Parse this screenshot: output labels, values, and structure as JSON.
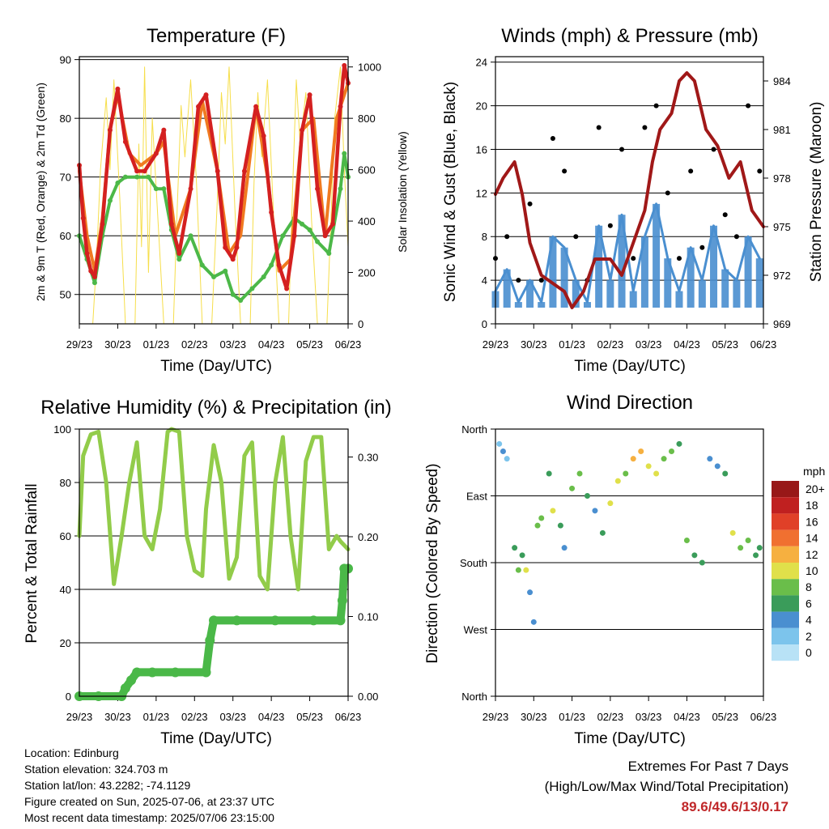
{
  "panels": {
    "temperature": {
      "title": "Temperature (F)",
      "ylabel_left": "2m & 9m T (Red, Orange) & 2m Td (Green)",
      "ylabel_right": "Solar Insolation (Yellow)",
      "xlabel": "Time (Day/UTC)"
    },
    "winds": {
      "title": "Winds (mph) & Pressure (mb)",
      "ylabel_left": "Sonic Wind & Gust (Blue, Black)",
      "ylabel_right": "Station Pressure (Maroon)",
      "xlabel": "Time (Day/UTC)"
    },
    "humidity": {
      "title": "Relative Humidity (%) & Precipitation (in)",
      "ylabel_left": "Percent & Total Rainfall",
      "xlabel": "Time (Day/UTC)"
    },
    "direction": {
      "title": "Wind Direction",
      "ylabel_left": "Direction (Colored By Speed)",
      "xlabel": "Time (Day/UTC)",
      "legend_title": "mph"
    }
  },
  "footer": {
    "location": "Location: Edinburg",
    "elevation": "Station elevation: 324.703 m",
    "latlon": "Station lat/lon: 43.2282; -74.1129",
    "created": "Figure created on Sun, 2025-07-06, at 23:37 UTC",
    "recent": "Most recent data timestamp: 2025/07/06 23:15:00",
    "extremes_heading": "Extremes For Past 7 Days",
    "extremes_subheading": "(High/Low/Max Wind/Total Precipitation)",
    "extremes_values": "89.6/49.6/13/0.17"
  },
  "colors": {
    "temp_2m": "#d42020",
    "temp_9m": "#f07a20",
    "dewpoint": "#4cb848",
    "solar": "#f6de4a",
    "wind": "#4a8fd0",
    "gust": "#000000",
    "pressure": "#a01818",
    "rh": "#92cc4a",
    "precip": "#4ab848"
  },
  "chart_data": [
    {
      "type": "line",
      "x_ticks": [
        "29/23",
        "30/23",
        "01/23",
        "02/23",
        "03/23",
        "04/23",
        "05/23",
        "06/23"
      ],
      "ylim": [
        45,
        90.5
      ],
      "y_ticks": [
        50,
        60,
        70,
        80,
        90
      ],
      "y2lim": [
        0,
        1040
      ],
      "y2_ticks": [
        0,
        200,
        400,
        600,
        800,
        1000
      ],
      "series": [
        {
          "key": "temp_2m",
          "x": [
            0,
            0.1,
            0.2,
            0.3,
            0.4,
            0.6,
            0.8,
            1.0,
            1.2,
            1.5,
            1.7,
            2.0,
            2.2,
            2.4,
            2.6,
            2.9,
            3.1,
            3.3,
            3.6,
            3.8,
            4.0,
            4.1,
            4.3,
            4.6,
            4.8,
            5.0,
            5.2,
            5.4,
            5.6,
            5.8,
            6.0,
            6.2,
            6.4,
            6.6,
            6.8,
            6.9,
            7.0
          ],
          "y": [
            72,
            63,
            57,
            54,
            53,
            62,
            78,
            85,
            76,
            71,
            71,
            74,
            78,
            62,
            57,
            68,
            82,
            84,
            71,
            58,
            56,
            58,
            71,
            82,
            77,
            64,
            55,
            51,
            60,
            78,
            84,
            68,
            60,
            62,
            82,
            89,
            86
          ]
        },
        {
          "key": "temp_9m",
          "x": [
            0,
            0.2,
            0.4,
            0.6,
            0.8,
            1.0,
            1.3,
            1.6,
            2.0,
            2.2,
            2.5,
            2.9,
            3.2,
            3.6,
            3.9,
            4.2,
            4.6,
            4.9,
            5.2,
            5.5,
            5.8,
            6.1,
            6.4,
            6.7,
            7.0
          ],
          "y": [
            71,
            60,
            54,
            63,
            78,
            84,
            74,
            72,
            74,
            76,
            60,
            68,
            83,
            71,
            57,
            60,
            82,
            70,
            54,
            56,
            78,
            80,
            60,
            80,
            86
          ]
        },
        {
          "key": "dewpoint",
          "x": [
            0,
            0.2,
            0.4,
            0.6,
            0.8,
            1.0,
            1.2,
            1.5,
            1.8,
            2.0,
            2.2,
            2.4,
            2.6,
            2.9,
            3.2,
            3.5,
            3.8,
            4.0,
            4.2,
            4.5,
            4.8,
            5.0,
            5.3,
            5.6,
            5.8,
            6.0,
            6.2,
            6.5,
            6.8,
            6.9,
            7.0
          ],
          "y": [
            60,
            56,
            52,
            60,
            66,
            69,
            70,
            70,
            70,
            68,
            68,
            61,
            56,
            60,
            55,
            53,
            54,
            50,
            49,
            51,
            53,
            55,
            60,
            63,
            62,
            61,
            59,
            57,
            68,
            74,
            70
          ]
        },
        {
          "key": "solar",
          "axis": "y2",
          "x": [
            0,
            0.35,
            0.45,
            0.55,
            0.7,
            0.8,
            0.9,
            1.05,
            1.2,
            1.45,
            1.55,
            1.62,
            1.7,
            1.8,
            1.9,
            2.05,
            2.2,
            2.45,
            2.55,
            2.65,
            2.75,
            2.9,
            3.05,
            3.2,
            3.45,
            3.6,
            3.7,
            3.8,
            3.9,
            4.05,
            4.2,
            4.45,
            4.55,
            4.65,
            4.75,
            4.9,
            5.05,
            5.2,
            5.45,
            5.55,
            5.65,
            5.75,
            5.9,
            6.05,
            6.2,
            6.45,
            6.55,
            6.65,
            6.8,
            6.9,
            7.0
          ],
          "y": [
            0,
            0,
            250,
            600,
            880,
            600,
            950,
            500,
            0,
            0,
            700,
            300,
            1000,
            200,
            800,
            400,
            0,
            0,
            450,
            850,
            650,
            950,
            550,
            0,
            0,
            500,
            900,
            700,
            1000,
            450,
            0,
            0,
            550,
            900,
            650,
            950,
            450,
            0,
            0,
            500,
            950,
            700,
            900,
            400,
            0,
            0,
            400,
            800,
            1000,
            600,
            300
          ]
        }
      ]
    },
    {
      "type": "scatter",
      "x_ticks": [
        "29/23",
        "30/23",
        "01/23",
        "02/23",
        "03/23",
        "04/23",
        "05/23",
        "06/23"
      ],
      "ylim": [
        0,
        24.5
      ],
      "y_ticks": [
        0,
        4,
        8,
        12,
        16,
        20,
        24
      ],
      "y2lim": [
        969,
        985.5
      ],
      "y2_ticks": [
        969,
        972,
        975,
        978,
        981,
        984
      ],
      "series": [
        {
          "key": "wind",
          "x": [
            0,
            0.3,
            0.6,
            0.9,
            1.2,
            1.5,
            1.8,
            2.1,
            2.4,
            2.7,
            3.0,
            3.3,
            3.6,
            3.9,
            4.2,
            4.5,
            4.8,
            5.1,
            5.4,
            5.7,
            6.0,
            6.3,
            6.6,
            6.9
          ],
          "y": [
            3,
            5,
            2,
            4,
            2,
            8,
            7,
            4,
            2,
            9,
            4,
            10,
            3,
            8,
            11,
            6,
            3,
            7,
            4,
            9,
            5,
            4,
            8,
            6
          ]
        },
        {
          "key": "gust",
          "x": [
            0,
            0.3,
            0.6,
            0.9,
            1.2,
            1.5,
            1.8,
            2.1,
            2.4,
            2.7,
            3.0,
            3.3,
            3.6,
            3.9,
            4.2,
            4.5,
            4.8,
            5.1,
            5.4,
            5.7,
            6.0,
            6.3,
            6.6,
            6.9
          ],
          "y": [
            6,
            8,
            4,
            11,
            4,
            17,
            14,
            8,
            4,
            18,
            9,
            16,
            6,
            18,
            20,
            12,
            6,
            14,
            7,
            16,
            10,
            8,
            20,
            14
          ]
        },
        {
          "key": "pressure",
          "axis": "y2",
          "x": [
            0,
            0.2,
            0.5,
            0.7,
            0.9,
            1.2,
            1.5,
            1.8,
            2.0,
            2.3,
            2.6,
            3.0,
            3.3,
            3.6,
            3.9,
            4.1,
            4.3,
            4.6,
            4.8,
            5.0,
            5.2,
            5.5,
            5.8,
            6.1,
            6.4,
            6.7,
            7.0
          ],
          "y": [
            977,
            978,
            979,
            977,
            974,
            972,
            971.5,
            971,
            970,
            971,
            973,
            973,
            972,
            974,
            976,
            979,
            981,
            982,
            984,
            984.5,
            984,
            981,
            980,
            978,
            979,
            976,
            975
          ]
        }
      ]
    },
    {
      "type": "line",
      "x_ticks": [
        "29/23",
        "30/23",
        "01/23",
        "02/23",
        "03/23",
        "04/23",
        "05/23",
        "06/23"
      ],
      "ylim": [
        0,
        100
      ],
      "y_ticks": [
        0,
        20,
        40,
        60,
        80,
        100
      ],
      "y2lim": [
        0,
        0.335
      ],
      "y2_ticks": [
        "0.00",
        "0.10",
        "0.20",
        "0.30"
      ],
      "series": [
        {
          "key": "rh",
          "x": [
            0,
            0.1,
            0.3,
            0.5,
            0.7,
            0.9,
            1.1,
            1.3,
            1.5,
            1.7,
            1.9,
            2.1,
            2.3,
            2.4,
            2.6,
            2.8,
            3.0,
            3.2,
            3.3,
            3.5,
            3.7,
            3.9,
            4.1,
            4.3,
            4.5,
            4.7,
            4.9,
            5.1,
            5.3,
            5.5,
            5.7,
            5.9,
            6.1,
            6.3,
            6.5,
            6.7,
            6.8,
            7.0
          ],
          "y": [
            60,
            90,
            98,
            99,
            80,
            42,
            60,
            80,
            95,
            60,
            55,
            70,
            99,
            100,
            99,
            60,
            47,
            45,
            70,
            94,
            80,
            44,
            52,
            90,
            95,
            45,
            40,
            80,
            97,
            60,
            40,
            88,
            97,
            97,
            55,
            60,
            58,
            55
          ]
        },
        {
          "key": "precip",
          "axis": "y2",
          "x": [
            0,
            0.5,
            1.1,
            1.2,
            1.35,
            1.5,
            1.9,
            2.5,
            3.3,
            3.4,
            3.5,
            4.1,
            5.1,
            6.1,
            6.8,
            6.85,
            6.9,
            7.0
          ],
          "y": [
            0,
            0,
            0,
            0.01,
            0.02,
            0.03,
            0.03,
            0.03,
            0.03,
            0.07,
            0.095,
            0.095,
            0.095,
            0.095,
            0.095,
            0.12,
            0.16,
            0.16
          ]
        }
      ]
    },
    {
      "type": "scatter",
      "x_ticks": [
        "29/23",
        "30/23",
        "01/23",
        "02/23",
        "03/23",
        "04/23",
        "05/23",
        "06/23"
      ],
      "y_ticks": [
        "North",
        "West",
        "South",
        "East",
        "North"
      ],
      "ylim": [
        0,
        360
      ],
      "legend": {
        "title": "mph",
        "levels": [
          "20+",
          "18",
          "16",
          "14",
          "12",
          "10",
          "8",
          "6",
          "4",
          "2",
          "0"
        ]
      },
      "series": [
        {
          "key": "direction",
          "x": [
            0.1,
            0.2,
            0.3,
            0.5,
            0.6,
            0.7,
            0.8,
            0.9,
            1.0,
            1.1,
            1.2,
            1.4,
            1.5,
            1.7,
            1.8,
            2.0,
            2.2,
            2.4,
            2.6,
            2.8,
            3.0,
            3.2,
            3.4,
            3.6,
            3.8,
            4.0,
            4.2,
            4.4,
            4.6,
            4.8,
            5.0,
            5.2,
            5.4,
            5.6,
            5.8,
            6.0,
            6.2,
            6.4,
            6.6,
            6.8,
            6.9
          ],
          "y": [
            340,
            330,
            320,
            200,
            170,
            190,
            170,
            140,
            100,
            230,
            240,
            300,
            250,
            230,
            200,
            280,
            300,
            270,
            250,
            220,
            260,
            290,
            300,
            320,
            330,
            310,
            300,
            320,
            330,
            340,
            210,
            190,
            180,
            320,
            310,
            300,
            220,
            200,
            210,
            190,
            200
          ],
          "speed": [
            2,
            3,
            2,
            6,
            8,
            5,
            10,
            4,
            3,
            7,
            8,
            5,
            9,
            6,
            4,
            8,
            7,
            5,
            3,
            6,
            9,
            10,
            8,
            11,
            12,
            10,
            9,
            8,
            7,
            6,
            8,
            6,
            5,
            4,
            3,
            5,
            10,
            8,
            7,
            6,
            5
          ]
        }
      ]
    }
  ]
}
